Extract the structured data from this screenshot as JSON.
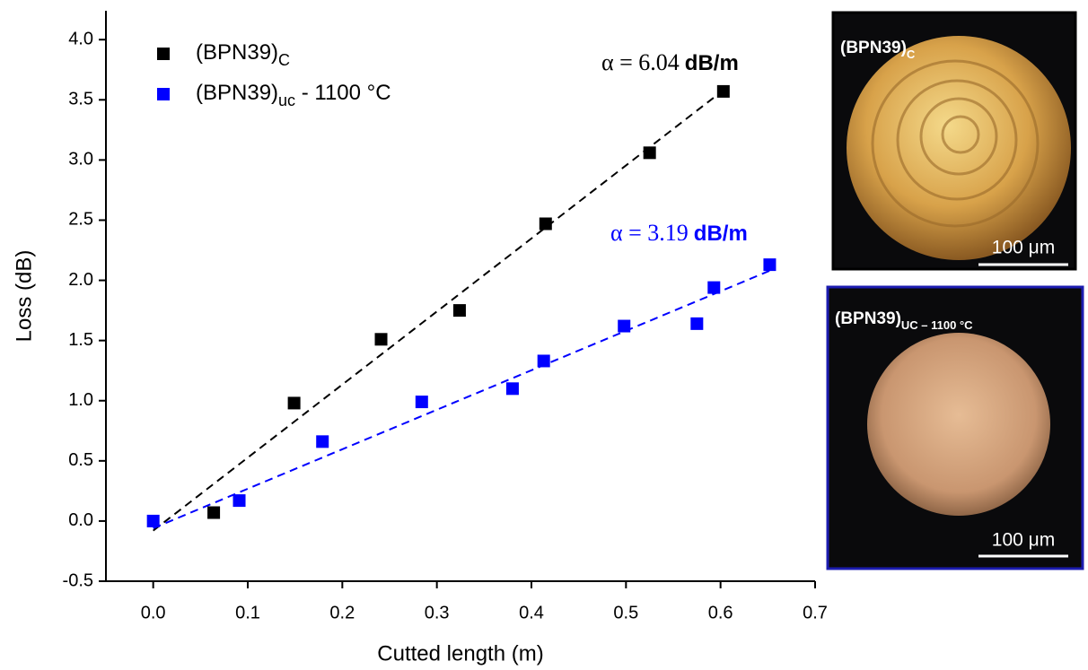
{
  "chart_data": {
    "type": "scatter",
    "x_label": "Cutted length (m)",
    "y_label": "Loss (dB)",
    "xlim": [
      -0.05,
      0.7
    ],
    "ylim": [
      -0.5,
      4.24
    ],
    "xticks": [
      {
        "value": 0,
        "label": "0.0"
      },
      0.1,
      0.2,
      0.3,
      0.4,
      0.5,
      0.6,
      0.7
    ],
    "yticks": [
      -0.5,
      {
        "value": 0,
        "label": "0.0"
      },
      0.5,
      {
        "value": 1,
        "label": "1.0"
      },
      1.5,
      {
        "value": 2,
        "label": "2.0"
      },
      2.5,
      {
        "value": 3,
        "label": "3.0"
      },
      3.5,
      {
        "value": 4,
        "label": "4.0"
      }
    ],
    "grid": false,
    "series": [
      {
        "name": "(BPN39)",
        "subscript": "C",
        "color": "#000000",
        "x": [
          0.064,
          0.149,
          0.241,
          0.324,
          0.415,
          0.525,
          0.603
        ],
        "values": [
          0.07,
          0.98,
          1.51,
          1.75,
          2.47,
          3.06,
          3.57
        ],
        "fit": {
          "x": [
            0.0,
            0.603
          ],
          "y": [
            -0.08,
            3.58
          ]
        },
        "annotation": {
          "text": "α = 6.04",
          "unit": "dB/m"
        }
      },
      {
        "name": "(BPN39)",
        "subscript": "uc",
        "suffix": " - 1100 °C",
        "color": "#0000ff",
        "x": [
          0.0,
          0.091,
          0.179,
          0.284,
          0.38,
          0.413,
          0.498,
          0.575,
          0.593,
          0.652
        ],
        "values": [
          0.0,
          0.17,
          0.66,
          0.99,
          1.1,
          1.33,
          1.62,
          1.64,
          1.94,
          2.13
        ],
        "fit": {
          "x": [
            0.0,
            0.652
          ],
          "y": [
            -0.06,
            2.08
          ]
        },
        "annotation": {
          "text": "α = 3.19",
          "unit": "dB/m"
        }
      }
    ]
  },
  "images": [
    {
      "label": "(BPN39)",
      "subscript": "C",
      "scale_bar": "100 μm"
    },
    {
      "label": "(BPN39)",
      "subscript": "UC – 1100 °C",
      "scale_bar": "100 μm"
    }
  ]
}
